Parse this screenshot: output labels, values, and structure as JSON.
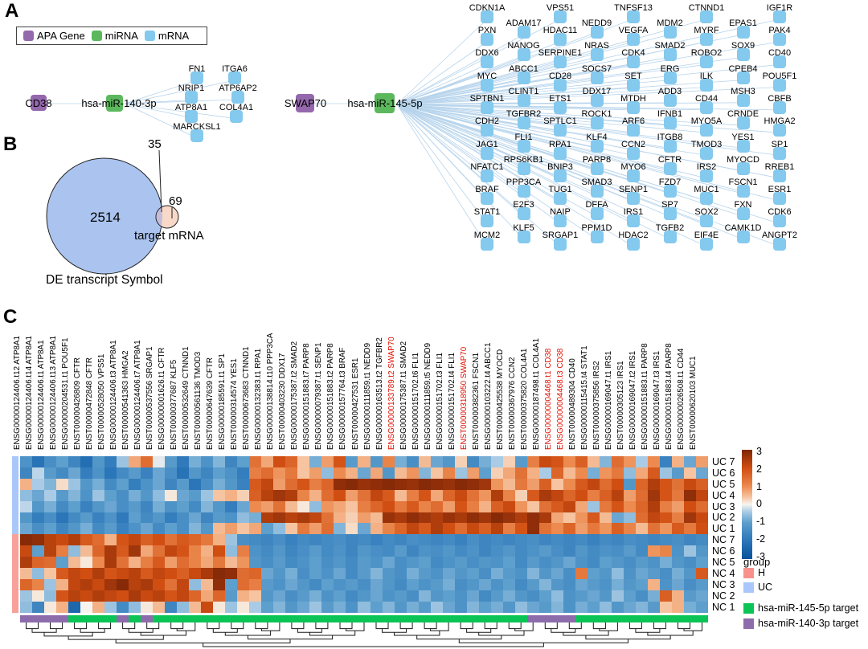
{
  "panels": {
    "a": "A",
    "b": "B",
    "c": "C"
  },
  "chart_data": [
    {
      "type": "network",
      "name": "apa-mirna-mrna-interaction-network",
      "legend": [
        {
          "label": "APA Gene",
          "color": "#9468ac"
        },
        {
          "label": "miRNA",
          "color": "#5cb85c"
        },
        {
          "label": "mRNA",
          "color": "#84c9ee"
        }
      ],
      "edge_color": "#b7d4ec",
      "network1": {
        "apa_gene": "CD38",
        "mirna": "hsa-miR-140-3p",
        "targets": [
          "FN1",
          "ITGA6",
          "NRIP1",
          "ATP6AP2",
          "ATP8A1",
          "COL4A1",
          "MARCKSL1"
        ]
      },
      "network2": {
        "apa_gene": "SWAP70",
        "mirna": "hsa-miR-145-5p",
        "target_rows": [
          [
            "CDKN1A",
            "VPS51",
            "TNFSF13",
            "CTNND1",
            "IGF1R"
          ],
          [
            "PXN",
            "ADAM17",
            "HDAC11",
            "NEDD9",
            "VEGFA",
            "MDM2",
            "MYRF",
            "EPAS1",
            "PAK4"
          ],
          [
            "DDX6",
            "NANOG",
            "SERPINE1",
            "NRAS",
            "CDK4",
            "SMAD2",
            "ROBO2",
            "SOX9",
            "CD40"
          ],
          [
            "MYC",
            "ABCC1",
            "CD28",
            "SOCS7",
            "SET",
            "ERG",
            "ILK",
            "CPEB4",
            "POU5F1"
          ],
          [
            "SPTBN1",
            "CLINT1",
            "ETS1",
            "DDX17",
            "MTDH",
            "ADD3",
            "CD44",
            "MSH3",
            "CBFB"
          ],
          [
            "CDH2",
            "TGFBR2",
            "SPTLC1",
            "ROCK1",
            "ARF6",
            "IFNB1",
            "MYO5A",
            "CRNDE",
            "HMGA2"
          ],
          [
            "JAG1",
            "FLI1",
            "RPA1",
            "KLF4",
            "CCN2",
            "ITGB8",
            "TMOD3",
            "YES1",
            "SP1"
          ],
          [
            "NFATC1",
            "RPS6KB1",
            "BNIP3",
            "PARP8",
            "MYO6",
            "CFTR",
            "IRS2",
            "MYOCD",
            "RREB1"
          ],
          [
            "BRAF",
            "PPP3CA",
            "TUG1",
            "SMAD3",
            "SENP1",
            "FZD7",
            "MUC1",
            "FSCN1",
            "ESR1"
          ],
          [
            "STAT1",
            "E2F3",
            "NAIP",
            "DFFA",
            "IRS1",
            "SP7",
            "SOX2",
            "FXN",
            "CDK6"
          ],
          [
            "MCM2",
            "KLF5",
            "SRGAP1",
            "PPM1D",
            "HDAC2",
            "TGFB2",
            "EIF4E",
            "CAMK1D",
            "ANGPT2"
          ]
        ]
      }
    },
    {
      "type": "venn",
      "big_count": "2514",
      "overlap_count": "35",
      "small_count": "69",
      "big_label": "DE transcript Symbol",
      "small_label": "target mRNA",
      "big_color": "#abc4ef",
      "small_color": "#f8d8c8",
      "overlap_color": "#c4bcd8"
    },
    {
      "type": "heatmap",
      "columns": [
        "ENSG00000124406.t12 ATP8A1",
        "ENSG00000124406.t14 ATP8A1",
        "ENSG00000124406.t1 ATP8A1",
        "ENSG00000124406.t13 ATP8A1",
        "ENSG00000204531.t1 POU5F1",
        "ENST00000426809 CFTR",
        "ENST00000472848 CFTR",
        "ENST00000528050 VPS51",
        "ENSG00000124406.t3 ATP8A1",
        "ENST00000541363 HMGA2",
        "ENSG00000124406.t7 ATP8A1",
        "ENST00000537556 SRGAP1",
        "ENSG00000001626.t1 CFTR",
        "ENST00000377687 KLF5",
        "ENST00000532649 CTNND1",
        "ENST00000561136 TMOD3",
        "ENST00000647639 CFTR",
        "ENSG00000185591.t1 SP1",
        "ENST00000314574 YES1",
        "ENST00000673683 CTNND1",
        "ENSG00000132383.t1 RPA1",
        "ENSG00000138814.t10 PPP3CA",
        "ENST00000403230 DDX17",
        "ENSG00000175387.t2 SMAD2",
        "ENSG00000151883.t7 PARP8",
        "ENSG00000079387.t1 SENP1",
        "ENSG00000151883.t2 PARP8",
        "ENSG00000157764.t3 BRAF",
        "ENST00000427531 ESR1",
        "ENSG00000111859.t1 NEDD9",
        "ENSG00000163513.t2 TGFBR2",
        "ENSG00000133789.t2 SWAP70",
        "ENSG00000175387.t1 SMAD2",
        "ENSG00000151702.t6 FLI1",
        "ENSG00000111859.t5 NEDD9",
        "ENSG00000151702.t3 FLI1",
        "ENSG00000151702.t4 FLI1",
        "ENST00000318950 SWAP70",
        "ENST00000382361 FSCN1",
        "ENSG00000103222.t4 ABCC1",
        "ENST00000425538 MYOCD",
        "ENST00000367976 CCN2",
        "ENST00000375820 COL4A1",
        "ENSG00000187498.t1 COL4A1",
        "ENSG00000004468.t1 CD38",
        "ENSG00000004468.t3 CD38",
        "ENST00000489304 CD40",
        "ENSG00000115415.t4 STAT1",
        "ENST00000375856 IRS2",
        "ENSG00000169047.t1 IRS1",
        "ENST00000305123 IRS1",
        "ENSG00000169047.t2 IRS1",
        "ENSG00000151883.t1 PARP8",
        "ENSG00000169047.t3 IRS1",
        "ENSG00000151883.t4 PARP8",
        "ENSG00000026508.t1 CD44",
        "ENST00000620103 MUC1"
      ],
      "red_columns": [
        32,
        38,
        45,
        46
      ],
      "mir140_columns": [
        1,
        2,
        3,
        4,
        9,
        11,
        43,
        44,
        45,
        46
      ],
      "rows": [
        "UC 7",
        "UC 6",
        "UC 5",
        "UC 4",
        "UC 3",
        "UC 2",
        "UC 1",
        "NC 7",
        "NC 6",
        "NC 5",
        "NC 4",
        "NC 3",
        "NC 2",
        "NC 1"
      ],
      "row_groups": {
        "top_color": "#a9c7fa",
        "bottom_color": "#f8a19a"
      },
      "values": [
        [
          -1.3,
          -2.1,
          -1.4,
          -1.0,
          -1.6,
          -2.2,
          -1.2,
          -1.8,
          -0.5,
          0.7,
          1.5,
          -0.1,
          -1.1,
          -1.9,
          -0.8,
          -1.3,
          -0.7,
          -1.6,
          -1.0,
          1.4,
          0.7,
          2.0,
          1.6,
          0.4,
          -0.8,
          0.8,
          1.9,
          -1.1,
          0.6,
          -1.2,
          1.1,
          -0.8,
          -1.4,
          0.5,
          -0.9,
          -1.2,
          0.3,
          -1.5,
          -0.8,
          -0.4,
          0.3,
          -1.1,
          1.2,
          2.1,
          1.9,
          1.0,
          1.7,
          0.5,
          -0.7,
          1.5,
          0.9,
          -0.4,
          1.0,
          -1.7,
          0.6,
          -0.9,
          0.8
        ],
        [
          -1.6,
          -0.3,
          -1.1,
          -1.5,
          -0.9,
          -1.8,
          -1.3,
          -2.0,
          -1.5,
          -1.1,
          -1.7,
          -0.9,
          -1.4,
          -2.1,
          -1.2,
          -1.6,
          -1.0,
          -1.3,
          -1.8,
          1.2,
          1.5,
          0.9,
          1.3,
          0.4,
          0.8,
          -0.6,
          1.0,
          0.6,
          -0.9,
          0.7,
          -1.2,
          0.5,
          0.9,
          -0.7,
          0.4,
          1.1,
          -0.5,
          0.8,
          -1.0,
          0.3,
          0.7,
          1.4,
          0.6,
          -0.4,
          1.6,
          0.5,
          1.0,
          -0.8,
          0.9,
          1.3,
          -0.6,
          0.7,
          1.8,
          -0.5,
          -1.1,
          0.4,
          -0.9
        ],
        [
          0.6,
          -0.4,
          -0.7,
          0.2,
          -0.5,
          -1.2,
          -0.8,
          -1.5,
          -1.0,
          -1.8,
          -1.3,
          -0.9,
          -1.6,
          -1.1,
          -2.0,
          -1.4,
          -0.8,
          -1.2,
          -1.7,
          1.8,
          2.2,
          0.8,
          1.5,
          1.9,
          1.2,
          1.6,
          2.8,
          2.9,
          2.7,
          2.8,
          2.9,
          2.8,
          2.7,
          2.9,
          2.8,
          2.7,
          2.9,
          2.8,
          2.6,
          0.9,
          0.5,
          1.3,
          0.8,
          1.7,
          0.4,
          1.0,
          1.8,
          2.2,
          1.5,
          2.0,
          -1.2,
          1.6,
          2.4,
          1.9,
          1.4,
          2.1,
          1.7
        ],
        [
          -0.6,
          -0.9,
          -0.4,
          -1.1,
          -0.7,
          -1.3,
          -0.5,
          -1.0,
          -1.4,
          -0.8,
          -1.2,
          -0.6,
          0.1,
          -0.9,
          -1.1,
          -0.5,
          0.4,
          0.6,
          0.3,
          1.7,
          2.3,
          2.6,
          2.4,
          1.1,
          0.6,
          1.5,
          2.0,
          0.8,
          1.4,
          2.2,
          1.8,
          0.5,
          1.2,
          1.9,
          0.7,
          1.6,
          2.1,
          1.4,
          0.9,
          2.4,
          1.1,
          0.3,
          1.8,
          2.5,
          2.2,
          1.6,
          2.0,
          1.2,
          1.7,
          2.3,
          0.8,
          1.5,
          2.6,
          1.9,
          1.3,
          2.8,
          2.2
        ],
        [
          -0.3,
          -1.2,
          -0.8,
          -1.5,
          -1.0,
          -1.7,
          -1.2,
          -0.9,
          -1.4,
          -1.1,
          -1.6,
          -0.8,
          -1.3,
          -1.0,
          -1.5,
          -0.7,
          -1.2,
          -1.8,
          -0.9,
          1.0,
          0.8,
          1.4,
          0.5,
          0.1,
          -0.6,
          0.9,
          0.7,
          0.4,
          1.2,
          1.6,
          2.0,
          1.3,
          1.8,
          1.1,
          1.5,
          0.8,
          1.9,
          1.2,
          0.6,
          1.7,
          2.1,
          0.9,
          0.4,
          1.4,
          1.8,
          2.2,
          0.7,
          -0.5,
          1.3,
          1.9,
          1.0,
          1.6,
          2.4,
          1.2,
          0.8,
          2.0,
          1.5
        ],
        [
          -1.2,
          -1.8,
          -1.4,
          -2.0,
          -1.5,
          -1.1,
          -1.7,
          -1.3,
          -1.9,
          -1.0,
          -1.5,
          -1.2,
          -1.8,
          -1.4,
          -0.9,
          -1.6,
          -1.1,
          -1.3,
          -0.6,
          -0.8,
          2.4,
          2.6,
          2.3,
          2.5,
          2.2,
          1.4,
          0.6,
          0.3,
          0.8,
          0.5,
          2.7,
          2.5,
          2.8,
          2.6,
          2.4,
          2.7,
          2.5,
          2.8,
          2.6,
          2.9,
          2.7,
          2.4,
          2.8,
          2.5,
          0.7,
          0.4,
          0.9,
          1.8,
          0.5,
          -0.9,
          -0.6,
          1.5,
          2.2,
          1.9,
          1.2,
          2.6,
          2.1
        ],
        [
          -0.9,
          -1.4,
          -1.0,
          -1.6,
          -1.2,
          -0.8,
          -1.5,
          -1.1,
          -1.7,
          -1.3,
          -0.9,
          -1.5,
          -1.0,
          -1.4,
          -0.7,
          -1.2,
          0.5,
          0.8,
          0.4,
          0.7,
          -1.0,
          -0.6,
          0.4,
          1.3,
          0.8,
          1.5,
          -0.7,
          0.2,
          -0.9,
          0.6,
          1.1,
          1.6,
          2.2,
          1.8,
          2.4,
          2.0,
          1.5,
          2.1,
          1.7,
          2.3,
          1.2,
          1.9,
          2.8,
          1.4,
          1.0,
          1.6,
          0.8,
          1.3,
          0.9,
          1.7,
          1.1,
          0.5,
          1.4,
          0.9,
          1.8,
          1.3,
          2.0
        ],
        [
          2.9,
          2.8,
          2.3,
          2.1,
          2.4,
          1.8,
          1.5,
          0.6,
          1.9,
          2.2,
          1.7,
          2.0,
          1.4,
          1.8,
          1.6,
          1.3,
          0.6,
          -0.5,
          -1.4,
          -1.5,
          -1.6,
          -1.4,
          -1.7,
          -1.5,
          -1.6,
          -1.5,
          -1.4,
          -1.6,
          -1.5,
          -1.7,
          -1.5,
          -1.6,
          -1.4,
          -1.5,
          -1.6,
          -1.5,
          -1.7,
          -1.4,
          -1.6,
          -1.5,
          -1.6,
          -1.5,
          -1.4,
          -1.6,
          -1.5,
          -1.6,
          -1.5,
          -1.7,
          -1.5,
          -1.6,
          -1.4,
          -1.5,
          -1.6,
          -1.5,
          -1.4,
          -1.6,
          -1.5
        ],
        [
          2.1,
          -1.0,
          2.3,
          1.2,
          -0.6,
          0.5,
          1.6,
          2.5,
          1.8,
          2.6,
          0.7,
          1.4,
          2.2,
          1.9,
          1.1,
          0.6,
          2.0,
          -0.6,
          1.2,
          -1.3,
          -1.5,
          -1.2,
          -1.6,
          -1.4,
          -1.1,
          -1.5,
          -1.3,
          -1.6,
          -1.2,
          -1.4,
          -1.5,
          -1.1,
          -1.6,
          -1.3,
          -1.4,
          -1.2,
          -1.5,
          -1.3,
          -1.6,
          -1.4,
          -1.2,
          -1.5,
          -1.3,
          -1.1,
          -1.4,
          -1.6,
          -1.2,
          -1.5,
          -1.3,
          -1.4,
          -1.1,
          -1.5,
          0.9,
          1.1,
          -1.3,
          -0.5,
          -1.2
        ],
        [
          2.4,
          1.6,
          1.5,
          -1.0,
          0.5,
          0.1,
          1.0,
          2.5,
          1.4,
          0.6,
          1.2,
          1.8,
          0.8,
          1.5,
          1.1,
          0.7,
          1.3,
          0.5,
          0.9,
          -1.2,
          -1.4,
          -1.1,
          -1.5,
          -1.3,
          -1.0,
          -1.4,
          -1.2,
          -1.5,
          -1.1,
          -1.3,
          -0.9,
          -1.4,
          -1.2,
          -1.0,
          -1.5,
          -1.3,
          -1.1,
          -1.4,
          -1.2,
          -1.3,
          -1.0,
          -1.5,
          -1.1,
          -1.4,
          -1.2,
          -0.9,
          -1.3,
          -1.5,
          -1.0,
          -1.2,
          -1.4,
          -1.1,
          -1.3,
          -0.8,
          -1.2,
          -1.4,
          -1.0
        ],
        [
          0.5,
          -0.6,
          0.4,
          1.8,
          2.2,
          2.0,
          2.4,
          1.9,
          2.1,
          2.3,
          1.8,
          2.2,
          2.0,
          1.7,
          2.1,
          2.5,
          2.9,
          2.8,
          1.5,
          1.6,
          -0.9,
          -1.2,
          -0.8,
          -1.4,
          -1.0,
          -1.3,
          -0.9,
          -1.5,
          -1.1,
          -0.7,
          -1.2,
          -1.4,
          -0.8,
          -1.1,
          -1.3,
          -0.9,
          -1.2,
          -1.0,
          -1.4,
          -0.8,
          -1.1,
          -1.3,
          -0.7,
          -1.2,
          -0.9,
          -1.4,
          1.3,
          -1.0,
          -1.2,
          -0.6,
          -1.3,
          -0.9,
          -1.1,
          -1.4,
          -0.8,
          -1.2,
          1.8
        ],
        [
          1.6,
          1.1,
          -0.5,
          0.6,
          2.2,
          2.4,
          2.1,
          2.6,
          2.9,
          2.3,
          2.5,
          2.0,
          1.4,
          2.2,
          -0.6,
          0.5,
          2.8,
          -1.0,
          1.5,
          1.2,
          -1.1,
          -1.3,
          -0.9,
          -1.2,
          -1.5,
          -1.0,
          -1.3,
          -1.1,
          -1.4,
          -0.9,
          -1.2,
          -1.5,
          -1.0,
          -1.3,
          -1.1,
          -0.8,
          -1.4,
          -1.2,
          -0.9,
          -1.3,
          -1.0,
          -1.5,
          -1.1,
          -0.7,
          -1.2,
          -1.4,
          -0.9,
          -1.1,
          -1.3,
          -0.8,
          -1.2,
          -1.0,
          0.6,
          -1.3,
          -0.9,
          -1.4,
          -1.1
        ],
        [
          -0.5,
          0.1,
          -0.6,
          1.9,
          2.3,
          2.1,
          2.4,
          2.2,
          2.0,
          2.5,
          2.1,
          2.3,
          1.9,
          2.2,
          1.6,
          0.7,
          1.6,
          -1.1,
          0.6,
          0.4,
          -1.2,
          -0.9,
          -1.4,
          -1.1,
          -0.8,
          -1.3,
          -1.0,
          -1.5,
          -1.2,
          -0.9,
          -1.3,
          -1.1,
          -1.4,
          -0.7,
          -1.2,
          -1.0,
          -1.3,
          -0.9,
          -1.5,
          -1.1,
          -0.8,
          -1.2,
          -1.4,
          -1.0,
          -0.6,
          -1.3,
          -1.1,
          -0.9,
          -1.2,
          -0.5,
          -1.0,
          -1.4,
          -0.8,
          1.7,
          0.6,
          -1.1,
          -0.9
        ],
        [
          -0.6,
          -1.6,
          0.1,
          0.6,
          -2.4,
          0.0,
          0.6,
          -0.5,
          -1.5,
          -0.6,
          0.1,
          0.5,
          -1.6,
          -0.6,
          0.5,
          2.1,
          0.1,
          -0.5,
          0.1,
          -0.4,
          -1.0,
          -0.7,
          -1.2,
          -0.9,
          -0.5,
          -1.1,
          -0.8,
          -1.3,
          -0.6,
          -1.0,
          -0.7,
          -1.2,
          -0.8,
          -1.1,
          -0.5,
          -0.9,
          -1.3,
          -0.7,
          -1.0,
          -0.8,
          -1.2,
          -0.6,
          -0.9,
          -1.1,
          -0.7,
          -1.3,
          -0.8,
          -1.0,
          -0.6,
          -1.2,
          -0.9,
          -0.7,
          -1.1,
          0.4,
          0.6,
          -0.8,
          -1.0
        ]
      ],
      "scale": {
        "min": -3,
        "max": 3,
        "ticks": [
          "3",
          "2",
          "1",
          "0",
          "-1",
          "-2",
          "-3"
        ],
        "stops": [
          [
            -3,
            "#08519c"
          ],
          [
            -2,
            "#2b76b9"
          ],
          [
            -1,
            "#5d9fcd"
          ],
          [
            -0.4,
            "#a9cbe5"
          ],
          [
            0,
            "#f7f4f0"
          ],
          [
            0.4,
            "#f6c4a0"
          ],
          [
            1,
            "#ec8a4f"
          ],
          [
            2,
            "#d14e12"
          ],
          [
            3,
            "#7f2606"
          ]
        ]
      },
      "legend": {
        "title": "group",
        "items": [
          {
            "label": "H",
            "color": "#f8918c"
          },
          {
            "label": "UC",
            "color": "#a9c7fa"
          },
          {
            "label": "hsa-miR-145-5p target",
            "color": "#0bc456"
          },
          {
            "label": "hsa-miR-140-3p target",
            "color": "#8d6cab"
          }
        ]
      },
      "red_label_color": "#e01000"
    }
  ]
}
